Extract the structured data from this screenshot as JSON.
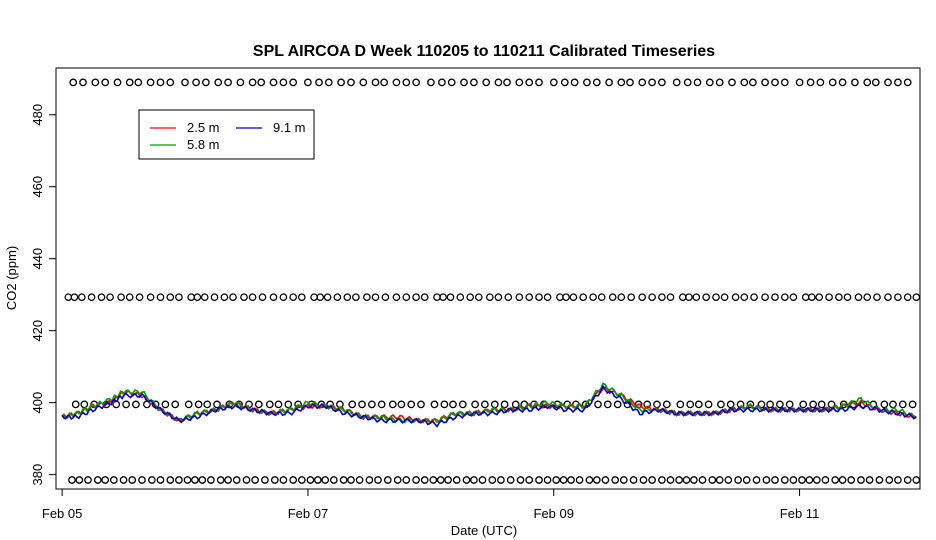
{
  "chart_data": {
    "type": "line",
    "title": "SPL AIRCOA D  Week 110205 to 110211  Calibrated Timeseries",
    "xlabel": "Date (UTC)",
    "ylabel": "CO2 (ppm)",
    "x_unit": "days",
    "xlim": [
      2011.0963,
      2011.1152
    ],
    "xlim_days": [
      4.95,
      11.98
    ],
    "ylim": [
      376,
      493
    ],
    "x_ticks": [
      {
        "day": 5,
        "label": "Feb 05"
      },
      {
        "day": 7,
        "label": "Feb 07"
      },
      {
        "day": 9,
        "label": "Feb 09"
      },
      {
        "day": 11,
        "label": "Feb 11"
      }
    ],
    "y_ticks": [
      {
        "value": 380,
        "label": "380"
      },
      {
        "value": 400,
        "label": "400"
      },
      {
        "value": 420,
        "label": "420"
      },
      {
        "value": 440,
        "label": "440"
      },
      {
        "value": 460,
        "label": "460"
      },
      {
        "value": 480,
        "label": "480"
      }
    ],
    "legend": {
      "position": "top-left",
      "entries": [
        {
          "label": "2.5 m",
          "color": "#ff0000"
        },
        {
          "label": "5.8 m",
          "color": "#00a000"
        },
        {
          "label": "9.1 m",
          "color": "#0000cc"
        }
      ]
    },
    "series": [
      {
        "name": "2.5 m",
        "color": "#ff0000",
        "x": [
          5.0,
          5.12,
          5.25,
          5.4,
          5.5,
          5.65,
          5.8,
          5.95,
          6.1,
          6.25,
          6.4,
          6.55,
          6.7,
          6.85,
          7.0,
          7.15,
          7.3,
          7.45,
          7.6,
          7.75,
          7.9,
          8.05,
          8.2,
          8.35,
          8.5,
          8.65,
          8.8,
          8.95,
          9.1,
          9.25,
          9.4,
          9.55,
          9.7,
          9.85,
          10.0,
          10.15,
          10.3,
          10.45,
          10.6,
          10.75,
          10.9,
          11.05,
          11.2,
          11.35,
          11.5,
          11.65,
          11.8,
          11.95
        ],
        "y": [
          396,
          397,
          399,
          400,
          403,
          402,
          398,
          395,
          397,
          398,
          400,
          398,
          397,
          398,
          399,
          399,
          398,
          396,
          396,
          396,
          395,
          395,
          397,
          397,
          398,
          398,
          399,
          399,
          399,
          399,
          404,
          402,
          399,
          398,
          397,
          397,
          397,
          398,
          399,
          398,
          398,
          398,
          398,
          399,
          400,
          398,
          397,
          396
        ]
      },
      {
        "name": "5.8 m",
        "color": "#00a000",
        "x": [
          5.0,
          5.12,
          5.25,
          5.4,
          5.5,
          5.65,
          5.8,
          5.95,
          6.1,
          6.25,
          6.4,
          6.55,
          6.7,
          6.85,
          7.0,
          7.15,
          7.3,
          7.45,
          7.6,
          7.75,
          7.9,
          8.05,
          8.2,
          8.35,
          8.5,
          8.65,
          8.8,
          8.95,
          9.1,
          9.25,
          9.4,
          9.55,
          9.7,
          9.85,
          10.0,
          10.15,
          10.3,
          10.45,
          10.6,
          10.75,
          10.9,
          11.05,
          11.2,
          11.35,
          11.5,
          11.65,
          11.8,
          11.95
        ],
        "y": [
          396,
          397,
          399,
          401,
          403,
          403,
          398,
          395,
          397,
          398,
          400,
          398,
          397,
          398,
          400,
          399,
          398,
          396,
          396,
          395,
          395,
          395,
          397,
          397,
          398,
          398,
          399,
          400,
          399,
          399,
          405,
          402,
          398,
          398,
          397,
          397,
          397,
          398,
          399,
          398,
          398,
          398,
          398,
          399,
          401,
          398,
          398,
          396
        ]
      },
      {
        "name": "9.1 m",
        "color": "#0000cc",
        "x": [
          5.0,
          5.12,
          5.25,
          5.4,
          5.5,
          5.65,
          5.8,
          5.95,
          6.1,
          6.25,
          6.4,
          6.55,
          6.7,
          6.85,
          7.0,
          7.15,
          7.3,
          7.45,
          7.6,
          7.75,
          7.9,
          8.05,
          8.2,
          8.35,
          8.5,
          8.65,
          8.8,
          8.95,
          9.1,
          9.25,
          9.4,
          9.55,
          9.7,
          9.85,
          10.0,
          10.15,
          10.3,
          10.45,
          10.6,
          10.75,
          10.9,
          11.05,
          11.2,
          11.35,
          11.5,
          11.65,
          11.8,
          11.95
        ],
        "y": [
          396,
          396,
          398,
          400,
          402,
          402,
          398,
          395,
          396,
          398,
          399,
          398,
          397,
          397,
          399,
          399,
          397,
          396,
          395,
          395,
          395,
          394,
          396,
          397,
          397,
          398,
          398,
          399,
          398,
          398,
          404,
          401,
          397,
          398,
          397,
          397,
          397,
          398,
          398,
          398,
          398,
          398,
          398,
          398,
          399,
          398,
          397,
          396
        ]
      }
    ],
    "reference_points": {
      "marker": "open-circle",
      "levels": [
        {
          "value": 489,
          "offsets": [
            0,
            0.09,
            0.17,
            0.27,
            0.35,
            0.45,
            0.55,
            0.62,
            0.72,
            0.8,
            0.88
          ]
        },
        {
          "value": 429.3,
          "offsets": [
            0.03,
            0.08,
            0.14,
            0.22,
            0.3,
            0.37,
            0.46,
            0.53,
            0.61,
            0.7,
            0.78,
            0.86,
            0.93
          ]
        },
        {
          "value": 399.5,
          "offsets": [
            0.03,
            0.11,
            0.18,
            0.26,
            0.36,
            0.44,
            0.52,
            0.6,
            0.69,
            0.76,
            0.84,
            0.92
          ]
        },
        {
          "value": 378.5,
          "offsets": [
            0,
            0.06,
            0.12,
            0.19,
            0.27,
            0.33,
            0.4,
            0.48,
            0.55,
            0.63,
            0.71,
            0.78,
            0.86,
            0.93
          ]
        }
      ],
      "x_start": 5.05,
      "x_end": 11.96,
      "period": 1.0
    }
  }
}
